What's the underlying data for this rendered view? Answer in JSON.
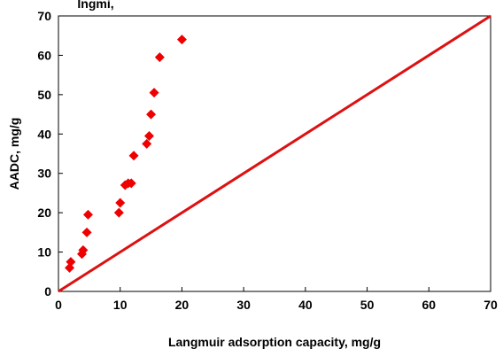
{
  "top_text": "Ingmi,",
  "chart_data": {
    "type": "scatter",
    "xlabel": "Langmuir adsorption capacity, mg/g",
    "ylabel": "AADC, mg/g",
    "xlim": [
      0,
      70
    ],
    "ylim": [
      0,
      70
    ],
    "x_ticks": [
      0,
      10,
      20,
      30,
      40,
      50,
      60,
      70
    ],
    "y_ticks": [
      0,
      10,
      20,
      30,
      40,
      50,
      60,
      70
    ],
    "grid": false,
    "legend": "none",
    "colors": {
      "marker": "#ee0000",
      "reference_line": "#dd1111",
      "axis": "#000000"
    },
    "series": [
      {
        "marker": "diamond",
        "points": [
          [
            1.8,
            6.0
          ],
          [
            2.0,
            7.5
          ],
          [
            3.8,
            9.5
          ],
          [
            4.0,
            10.5
          ],
          [
            4.6,
            15.0
          ],
          [
            4.8,
            19.5
          ],
          [
            9.8,
            20.0
          ],
          [
            10.0,
            22.5
          ],
          [
            10.8,
            27.0
          ],
          [
            11.3,
            27.5
          ],
          [
            11.8,
            27.5
          ],
          [
            12.2,
            34.5
          ],
          [
            14.3,
            37.5
          ],
          [
            14.7,
            39.5
          ],
          [
            15.0,
            45.0
          ],
          [
            15.5,
            50.5
          ],
          [
            16.4,
            59.5
          ],
          [
            20.0,
            64.0
          ]
        ]
      }
    ],
    "reference_line": {
      "from": [
        0,
        0
      ],
      "to": [
        70,
        70
      ]
    }
  }
}
